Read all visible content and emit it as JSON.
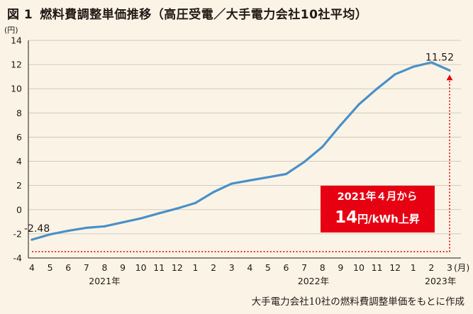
{
  "title": {
    "figure_label": "図 1",
    "text": "燃料費調整単価推移（高圧受電／大手電力会社10社平均）"
  },
  "source_note": "大手電力会社10社の燃料費調整単価をもとに作成",
  "colors": {
    "background": "#fbf4e6",
    "line": "#4a90c8",
    "accent": "#e60012",
    "text": "#231815"
  },
  "callout": {
    "line1": "2021年４月から",
    "big": "14",
    "small": "円/kWh上昇"
  },
  "chart_data": {
    "type": "line",
    "title": "燃料費調整単価推移（高圧受電／大手電力会社10社平均）",
    "ylabel": "(円)",
    "xlabel": "(月)",
    "ylim": [
      -4,
      14
    ],
    "yticks": [
      -4,
      -2,
      0,
      2,
      4,
      6,
      8,
      10,
      12,
      14
    ],
    "grid": true,
    "categories": [
      "4",
      "5",
      "6",
      "7",
      "8",
      "9",
      "10",
      "11",
      "12",
      "1",
      "2",
      "3",
      "4",
      "5",
      "6",
      "7",
      "8",
      "9",
      "10",
      "11",
      "12",
      "1",
      "2",
      "3"
    ],
    "year_labels": [
      {
        "text": "2021年",
        "at_category": 4
      },
      {
        "text": "2022年",
        "at_category": 15.5
      },
      {
        "text": "2023年",
        "at_category": 22.5
      }
    ],
    "series": [
      {
        "values": [
          -2.48,
          -2.05,
          -1.75,
          -1.5,
          -1.38,
          -1.05,
          -0.72,
          -0.3,
          0.1,
          0.55,
          1.45,
          2.15,
          2.42,
          2.68,
          2.95,
          3.95,
          5.2,
          7.0,
          8.7,
          10.0,
          11.2,
          11.82,
          12.18,
          11.52
        ]
      }
    ],
    "annotations": [
      {
        "text": "-2.48",
        "at_index": 0
      },
      {
        "text": "11.52",
        "at_index": 23
      }
    ]
  }
}
